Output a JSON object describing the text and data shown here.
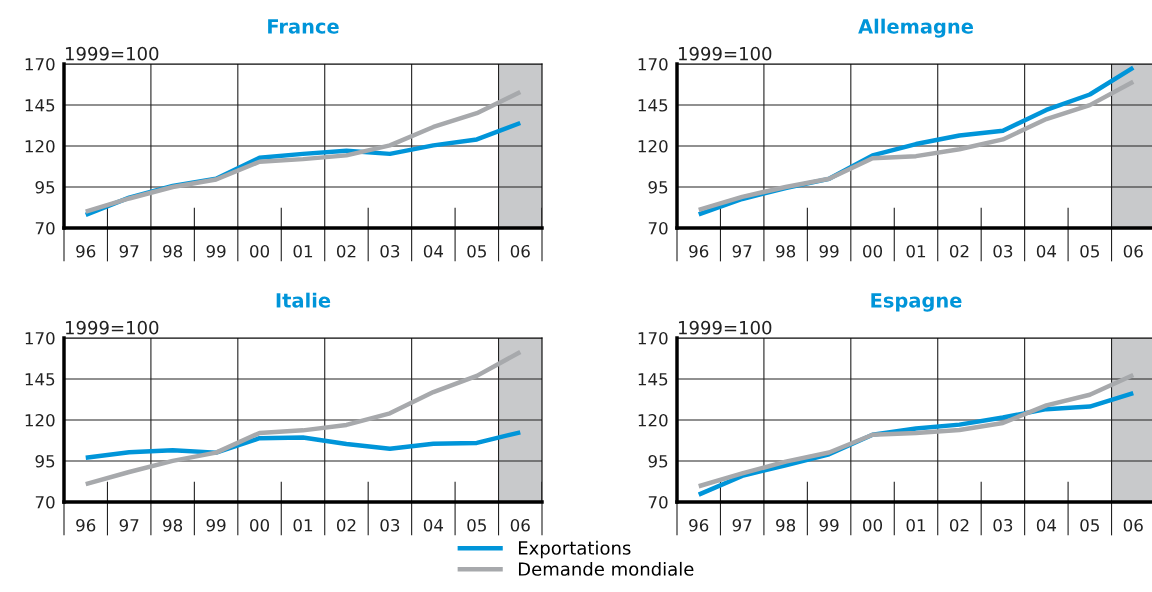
{
  "chart_data": [
    {
      "type": "line",
      "title": "France",
      "ylabel": "1999=100",
      "categories": [
        "96",
        "97",
        "98",
        "99",
        "00",
        "01",
        "02",
        "03",
        "04",
        "05",
        "06"
      ],
      "series": [
        {
          "color": "#0095d9",
          "values": [
            78,
            88.5,
            95.7,
            100,
            112.8,
            115.2,
            117.1,
            115.2,
            120.4,
            124,
            134
          ]
        },
        {
          "color": "#a7a9ac",
          "values": [
            80,
            88,
            95,
            99.6,
            110.4,
            112,
            114.3,
            120.4,
            131.6,
            140,
            153
          ]
        }
      ],
      "ylim": [
        70,
        170
      ],
      "yticks": [
        70,
        95,
        120,
        145,
        170
      ],
      "bands": [
        {
          "axis": "x",
          "from": "06",
          "to": "06",
          "color": "#c8c9cb"
        }
      ],
      "grid": true
    },
    {
      "type": "line",
      "title": "Allemagne",
      "ylabel": "1999=100",
      "categories": [
        "96",
        "97",
        "98",
        "99",
        "00",
        "01",
        "02",
        "03",
        "04",
        "05",
        "06"
      ],
      "series": [
        {
          "color": "#0095d9",
          "values": [
            78.3,
            87.7,
            94.4,
            100,
            114.3,
            121.2,
            126.4,
            129.3,
            142,
            151.4,
            167.8
          ]
        },
        {
          "color": "#a7a9ac",
          "values": [
            81,
            89,
            95,
            100,
            112.5,
            113.8,
            118,
            124,
            136.4,
            144.9,
            159.2
          ]
        }
      ],
      "ylim": [
        70,
        170
      ],
      "yticks": [
        70,
        95,
        120,
        145,
        170
      ],
      "bands": [
        {
          "axis": "x",
          "from": "06",
          "to": "06",
          "color": "#c8c9cb"
        }
      ],
      "grid": true
    },
    {
      "type": "line",
      "title": "Italie",
      "ylabel": "1999=100",
      "categories": [
        "96",
        "97",
        "98",
        "99",
        "00",
        "01",
        "02",
        "03",
        "04",
        "05",
        "06"
      ],
      "series": [
        {
          "color": "#0095d9",
          "values": [
            97,
            100.3,
            101.6,
            100.1,
            108.9,
            109.3,
            105.4,
            102.5,
            105.5,
            106,
            112.5
          ]
        },
        {
          "color": "#a7a9ac",
          "values": [
            80.9,
            88.3,
            95.1,
            100.1,
            112.1,
            113.7,
            117,
            124.1,
            137,
            146.9,
            161.5
          ]
        }
      ],
      "ylim": [
        70,
        170
      ],
      "yticks": [
        70,
        95,
        120,
        145,
        170
      ],
      "bands": [
        {
          "axis": "x",
          "from": "06",
          "to": "06",
          "color": "#c8c9cb"
        }
      ],
      "grid": true
    },
    {
      "type": "line",
      "title": "Espagne",
      "ylabel": "1999=100",
      "categories": [
        "96",
        "97",
        "98",
        "99",
        "00",
        "01",
        "02",
        "03",
        "04",
        "05",
        "06"
      ],
      "series": [
        {
          "name": "Exportations",
          "color": "#0095d9",
          "values": [
            74.5,
            85.9,
            92.4,
            99.1,
            111,
            114.8,
            117.2,
            121.5,
            126.6,
            128.2,
            136.4
          ]
        },
        {
          "name": "Demande mondiale",
          "color": "#a7a9ac",
          "values": [
            79.6,
            87.4,
            94.6,
            100.2,
            111,
            112.1,
            113.9,
            118.2,
            128.9,
            135.4,
            147.4
          ]
        }
      ],
      "ylim": [
        70,
        170
      ],
      "yticks": [
        70,
        95,
        120,
        145,
        170
      ],
      "bands": [
        {
          "axis": "x",
          "from": "06",
          "to": "06",
          "color": "#c8c9cb"
        }
      ],
      "grid": true,
      "legend": "bottom"
    }
  ]
}
